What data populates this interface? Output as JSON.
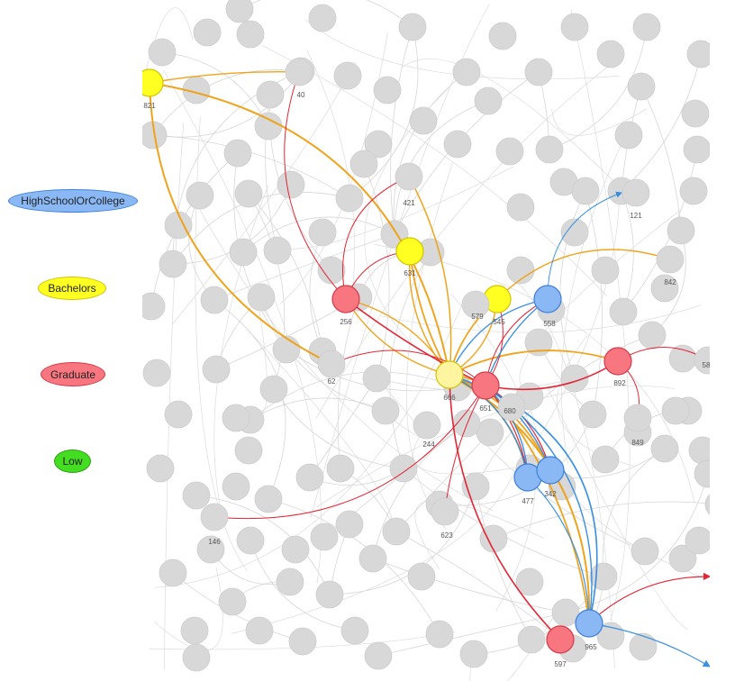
{
  "legend": {
    "highschool": {
      "label": "HighSchoolOrCollege",
      "fill": "#8ab8f5",
      "stroke": "#3d7fd8"
    },
    "bachelors": {
      "label": "Bachelors",
      "fill": "#ffff22",
      "stroke": "#d4c300"
    },
    "graduate": {
      "label": "Graduate",
      "fill": "#f7767f",
      "stroke": "#d43a49"
    },
    "low": {
      "label": "Low",
      "fill": "#44dd22",
      "stroke": "#28a010"
    }
  },
  "colors": {
    "grey_node": "#d8d8d8",
    "grey_edge": "#d0d0d0",
    "bachelors_edge": "#f0a010",
    "graduate_edge": "#e21a2a",
    "highschool_edge": "#2f8be0",
    "ego_fill": "#fff4a0"
  },
  "nodes": [
    {
      "id": "821",
      "group": "bachelors",
      "label": "821"
    },
    {
      "id": "40",
      "group": "grey",
      "label": "40"
    },
    {
      "id": "421",
      "group": "grey",
      "label": "421"
    },
    {
      "id": "121",
      "group": "grey",
      "label": "121"
    },
    {
      "id": "631",
      "group": "bachelors",
      "label": "631"
    },
    {
      "id": "256",
      "group": "graduate",
      "label": "256"
    },
    {
      "id": "545",
      "group": "bachelors",
      "label": "545"
    },
    {
      "id": "579",
      "group": "grey",
      "label": "579"
    },
    {
      "id": "558",
      "group": "highschool",
      "label": "558"
    },
    {
      "id": "842",
      "group": "grey",
      "label": "842"
    },
    {
      "id": "892",
      "group": "graduate",
      "label": "892"
    },
    {
      "id": "58",
      "group": "grey",
      "label": "58"
    },
    {
      "id": "62",
      "group": "grey",
      "label": "62"
    },
    {
      "id": "ego",
      "group": "ego",
      "label": "666"
    },
    {
      "id": "651",
      "group": "graduate",
      "label": "651"
    },
    {
      "id": "680",
      "group": "grey",
      "label": "680"
    },
    {
      "id": "849",
      "group": "grey",
      "label": "849"
    },
    {
      "id": "244",
      "group": "grey",
      "label": "244"
    },
    {
      "id": "477",
      "group": "highschool",
      "label": "477"
    },
    {
      "id": "342",
      "group": "highschool",
      "label": "342"
    },
    {
      "id": "146",
      "group": "grey",
      "label": "146"
    },
    {
      "id": "623",
      "group": "grey",
      "label": "623"
    },
    {
      "id": "965",
      "group": "highschool",
      "label": "965"
    },
    {
      "id": "597",
      "group": "graduate",
      "label": "597"
    }
  ]
}
